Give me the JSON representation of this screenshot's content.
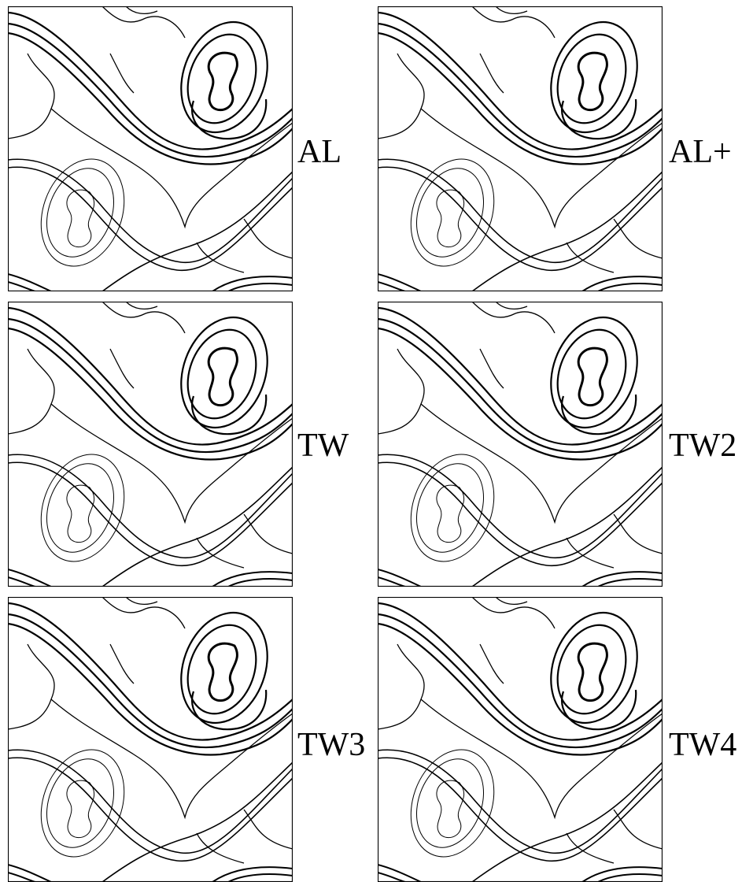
{
  "figure": {
    "panels": [
      {
        "label": "AL"
      },
      {
        "label": "AL+"
      },
      {
        "label": "TW"
      },
      {
        "label": "TW2"
      },
      {
        "label": "TW3"
      },
      {
        "label": "TW4"
      }
    ]
  },
  "colors": {
    "ink": "#000000",
    "background": "#ffffff"
  }
}
